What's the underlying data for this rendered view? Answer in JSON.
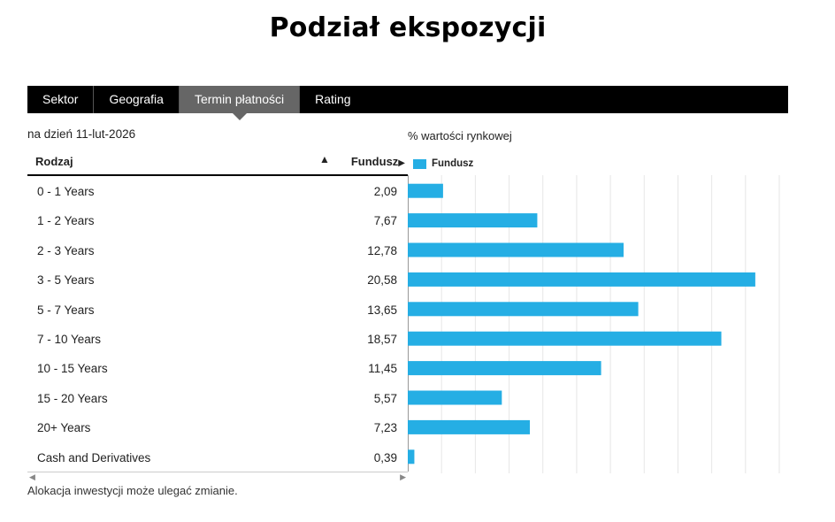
{
  "page": {
    "title": "Podział ekspozycji"
  },
  "tabs": [
    {
      "label": "Sektor",
      "active": false
    },
    {
      "label": "Geografia",
      "active": false
    },
    {
      "label": "Termin płatności",
      "active": true
    },
    {
      "label": "Rating",
      "active": false
    }
  ],
  "as_of": "na dzień 11-lut-2026",
  "table": {
    "col_type": "Rodzaj",
    "col_fund": "Fundusz",
    "sort_arrow": "▲",
    "fund_arrow": "▶"
  },
  "footnote": "Alokacja inwestycji może ulegać zmianie.",
  "scroll": {
    "left": "◀",
    "right": "▶"
  },
  "chart_data": {
    "type": "bar",
    "orientation": "horizontal",
    "title": "% wartości rynkowej",
    "categories": [
      "0 - 1 Years",
      "1 - 2 Years",
      "2 - 3 Years",
      "3 - 5 Years",
      "5 - 7 Years",
      "7 - 10 Years",
      "10 - 15 Years",
      "15 - 20 Years",
      "20+ Years",
      "Cash and Derivatives"
    ],
    "value_labels": [
      "2,09",
      "7,67",
      "12,78",
      "20,58",
      "13,65",
      "18,57",
      "11,45",
      "5,57",
      "7,23",
      "0,39"
    ],
    "series": [
      {
        "name": "Fundusz",
        "color": "#25aee4",
        "values": [
          2.09,
          7.67,
          12.78,
          20.58,
          13.65,
          18.57,
          11.45,
          5.57,
          7.23,
          0.39
        ]
      }
    ],
    "xlim": [
      0,
      22
    ],
    "grid": true,
    "legend": "top-left"
  }
}
